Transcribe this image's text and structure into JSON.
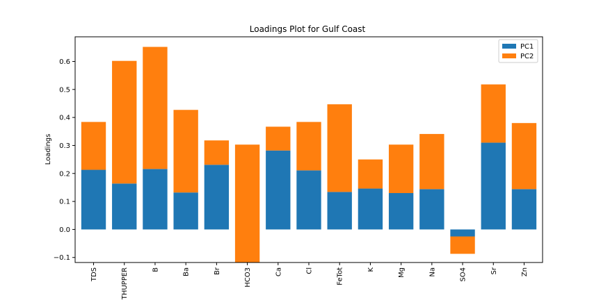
{
  "chart_data": {
    "type": "bar",
    "stacked": true,
    "title": "Loadings Plot for Gulf Coast",
    "xlabel": "",
    "ylabel": "Loadings",
    "ylim": [
      -0.118,
      0.688
    ],
    "yticks": [
      -0.1,
      0.0,
      0.1,
      0.2,
      0.3,
      0.4,
      0.5,
      0.6
    ],
    "ytick_labels": [
      "−0.1",
      "0.0",
      "0.1",
      "0.2",
      "0.3",
      "0.4",
      "0.5",
      "0.6"
    ],
    "grid": false,
    "legend_position": "top-right",
    "categories": [
      "TDS",
      "THUPPER",
      "B",
      "Ba",
      "Br",
      "HCO3",
      "Ca",
      "Cl",
      "FeTot",
      "K",
      "Mg",
      "Na",
      "SO4",
      "Sr",
      "Zn"
    ],
    "series": [
      {
        "name": "PC1",
        "color": "#1f77b4",
        "values": [
          0.213,
          0.164,
          0.216,
          0.132,
          0.231,
          -0.0,
          0.282,
          0.211,
          0.134,
          0.146,
          0.13,
          0.144,
          -0.025,
          0.31,
          0.144
        ]
      },
      {
        "name": "PC2",
        "color": "#ff7f0e",
        "values": [
          0.171,
          0.438,
          0.436,
          0.295,
          0.087,
          0.303,
          0.085,
          0.173,
          0.313,
          0.104,
          0.173,
          0.197,
          -0.062,
          0.208,
          0.236
        ]
      }
    ],
    "bases_note": "PC2 bars stack on top of PC1 (HCO3 PC2 bar spans from -0.118 clipped bottom up to 0.303)"
  }
}
